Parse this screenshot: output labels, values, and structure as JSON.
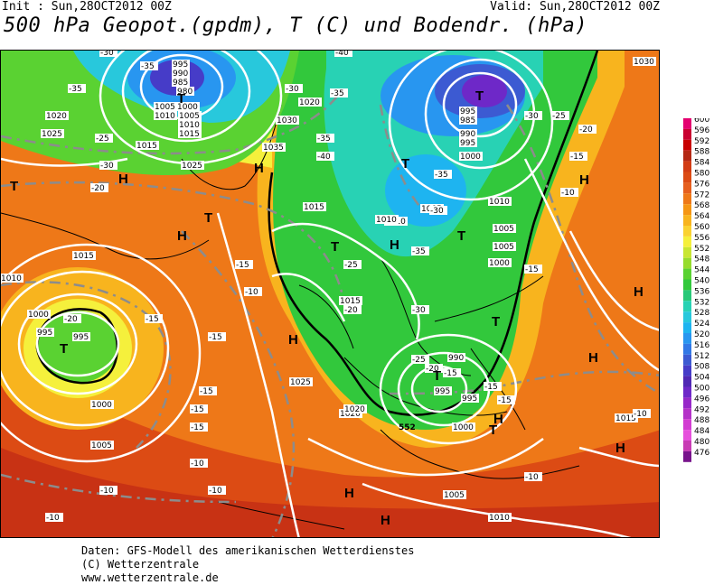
{
  "header": {
    "init": "Init : Sun,28OCT2012 00Z",
    "valid": "Valid: Sun,28OCT2012 00Z",
    "title": "500 hPa Geopot.(gpdm), T (C) und Bodendr. (hPa)"
  },
  "legend": {
    "levels": [
      "600",
      "596",
      "592",
      "588",
      "584",
      "580",
      "576",
      "572",
      "568",
      "564",
      "560",
      "556",
      "552",
      "548",
      "544",
      "540",
      "536",
      "532",
      "528",
      "524",
      "520",
      "516",
      "512",
      "508",
      "504",
      "500",
      "496",
      "492",
      "488",
      "484",
      "480",
      "476"
    ],
    "colors": [
      "#e40070",
      "#c80030",
      "#c80000",
      "#b42814",
      "#d23c14",
      "#dc4b14",
      "#e65f1e",
      "#ee7818",
      "#f59614",
      "#f8b41e",
      "#fad232",
      "#f5f03c",
      "#c8e632",
      "#96dc2d",
      "#5ad232",
      "#32c83c",
      "#28c878",
      "#28d2b4",
      "#28c8dc",
      "#1eb4f0",
      "#2896f0",
      "#3278e6",
      "#3c5ad2",
      "#463cc8",
      "#5028b4",
      "#6e28c8",
      "#9628c8",
      "#b432c8",
      "#d23cd2",
      "#e650dc",
      "#c83cb4",
      "#78148c"
    ]
  },
  "map": {
    "pressure_labels": [
      {
        "t": "995"
      },
      {
        "t": "990"
      },
      {
        "t": "985"
      },
      {
        "t": "980"
      },
      {
        "t": "1000"
      },
      {
        "t": "1005"
      },
      {
        "t": "1010"
      },
      {
        "t": "1015"
      },
      {
        "t": "1020"
      },
      {
        "t": "1025"
      },
      {
        "t": "1030"
      },
      {
        "t": "1035"
      },
      {
        "t": "995"
      },
      {
        "t": "985"
      },
      {
        "t": "990"
      },
      {
        "t": "995"
      },
      {
        "t": "1000"
      },
      {
        "t": "1005"
      },
      {
        "t": "1010"
      },
      {
        "t": "1015"
      },
      {
        "t": "1020"
      },
      {
        "t": "1025"
      },
      {
        "t": "1030"
      },
      {
        "t": "1000"
      },
      {
        "t": "995"
      },
      {
        "t": "995"
      },
      {
        "t": "1000"
      },
      {
        "t": "1005"
      },
      {
        "t": "1010"
      },
      {
        "t": "1015"
      },
      {
        "t": "990"
      },
      {
        "t": "995"
      },
      {
        "t": "995"
      },
      {
        "t": "1000"
      },
      {
        "t": "1005"
      },
      {
        "t": "1010"
      },
      {
        "t": "1015"
      },
      {
        "t": "1020"
      },
      {
        "t": "1005"
      },
      {
        "t": "1010"
      },
      {
        "t": "1015"
      },
      {
        "t": "1020"
      },
      {
        "t": "1025"
      },
      {
        "t": "1005"
      },
      {
        "t": "1010"
      },
      {
        "t": "1015"
      },
      {
        "t": "1010"
      },
      {
        "t": "1005"
      },
      {
        "t": "1000"
      }
    ],
    "temp_labels": [
      "-30",
      "-35",
      "-25",
      "-30",
      "-20",
      "-35",
      "-40",
      "-35",
      "-30",
      "-35",
      "-40",
      "-35",
      "-30",
      "-25",
      "-20",
      "-15",
      "-10",
      "-15",
      "-20",
      "-25",
      "-30",
      "-35",
      "-30",
      "-25",
      "-20",
      "-15",
      "-15",
      "-15",
      "-15",
      "-10",
      "-10",
      "-10",
      "-10",
      "-15",
      "-15",
      "-20",
      "-15",
      "-15",
      "-15",
      "-10",
      "-10",
      "-10"
    ],
    "pressure_centers": [
      "T",
      "T",
      "T",
      "T",
      "T",
      "T",
      "T",
      "T",
      "T",
      "T",
      "T",
      "H",
      "H",
      "H",
      "H",
      "H",
      "H",
      "H",
      "H",
      "H",
      "H",
      "H",
      "H"
    ],
    "contour_value_label": "552"
  },
  "footer": {
    "line1": "Daten: GFS-Modell des amerikanischen Wetterdienstes",
    "line2": "(C) Wetterzentrale",
    "line3": "www.wetterzentrale.de"
  }
}
